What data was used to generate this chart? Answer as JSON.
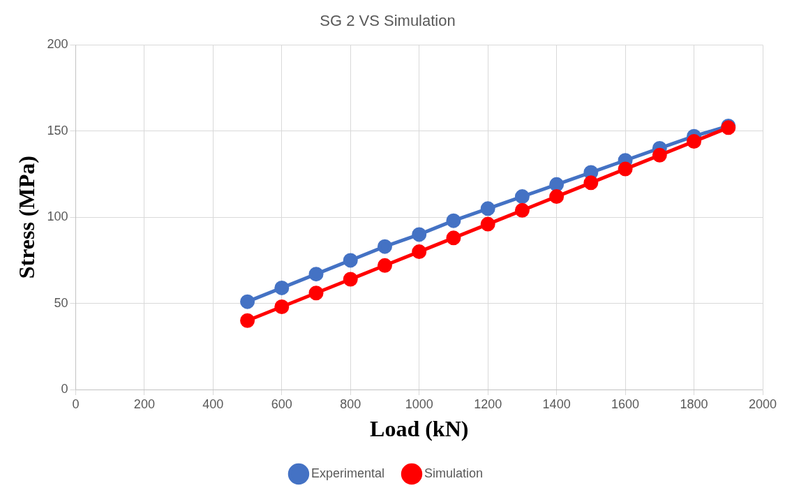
{
  "chart_data": {
    "type": "line",
    "title": "SG 2 VS Simulation",
    "xlabel": "Load (kN)",
    "ylabel": "Stress (MPa)",
    "x": [
      500,
      600,
      700,
      800,
      900,
      1000,
      1100,
      1200,
      1300,
      1400,
      1500,
      1600,
      1700,
      1800,
      1900
    ],
    "series": [
      {
        "name": "Experimental",
        "color": "#4472c4",
        "values": [
          51,
          59,
          67,
          75,
          83,
          90,
          98,
          105,
          112,
          119,
          126,
          133,
          140,
          147,
          153
        ]
      },
      {
        "name": "Simulation",
        "color": "#ff0000",
        "values": [
          40,
          48,
          56,
          64,
          72,
          80,
          88,
          96,
          104,
          112,
          120,
          128,
          136,
          144,
          152
        ]
      }
    ],
    "xlim": [
      0,
      2000
    ],
    "xticks": [
      0,
      200,
      400,
      600,
      800,
      1000,
      1200,
      1400,
      1600,
      1800,
      2000
    ],
    "ylim": [
      0,
      200
    ],
    "yticks": [
      0,
      50,
      100,
      150,
      200
    ],
    "grid": true,
    "legend": "bottom",
    "marker": "circle",
    "line_style": "solid"
  }
}
